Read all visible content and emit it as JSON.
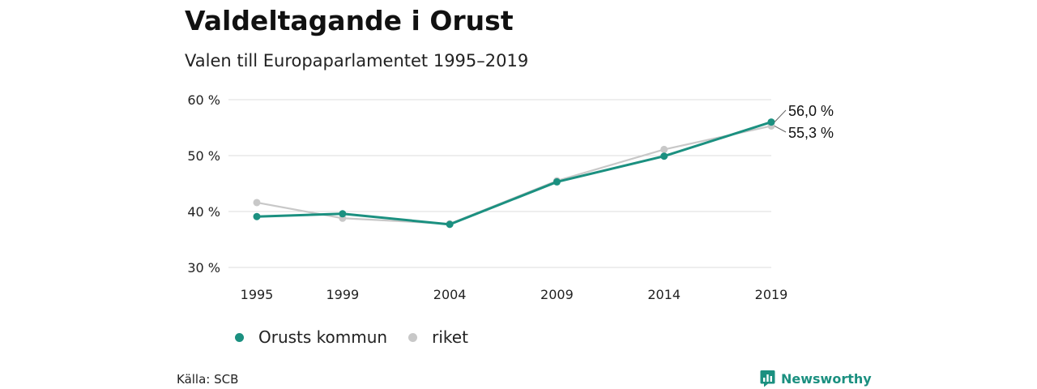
{
  "header": {
    "title": "Valdeltagande i Orust",
    "subtitle": "Valen till Europaparlamentet 1995–2019"
  },
  "footer": {
    "source": "Källa: SCB",
    "brand": "Newsworthy"
  },
  "colors": {
    "orust": "#1b9080",
    "riket": "#c8c8c8",
    "grid": "#dddddd",
    "brand": "#1b9080"
  },
  "icons": {
    "brand_logo": "bar-chart-bubble-icon"
  },
  "chart_data": {
    "type": "line",
    "title": "Valdeltagande i Orust",
    "subtitle": "Valen till Europaparlamentet 1995–2019",
    "x": [
      1995,
      1999,
      2004,
      2009,
      2014,
      2019
    ],
    "x_tick_labels": [
      "1995",
      "1999",
      "2004",
      "2009",
      "2014",
      "2019"
    ],
    "ylim": [
      30,
      60
    ],
    "y_ticks": [
      30,
      40,
      50,
      60
    ],
    "y_tick_labels": [
      "30 %",
      "40 %",
      "50 %",
      "60 %"
    ],
    "grid": true,
    "legend_position": "bottom-left",
    "series": [
      {
        "name": "Orusts kommun",
        "color": "#1b9080",
        "values": [
          39.1,
          39.6,
          37.7,
          45.3,
          49.9,
          56.0
        ]
      },
      {
        "name": "riket",
        "color": "#c8c8c8",
        "values": [
          41.6,
          38.8,
          37.8,
          45.5,
          51.1,
          55.3
        ]
      }
    ],
    "end_labels": [
      "56,0 %",
      "55,3 %"
    ]
  }
}
